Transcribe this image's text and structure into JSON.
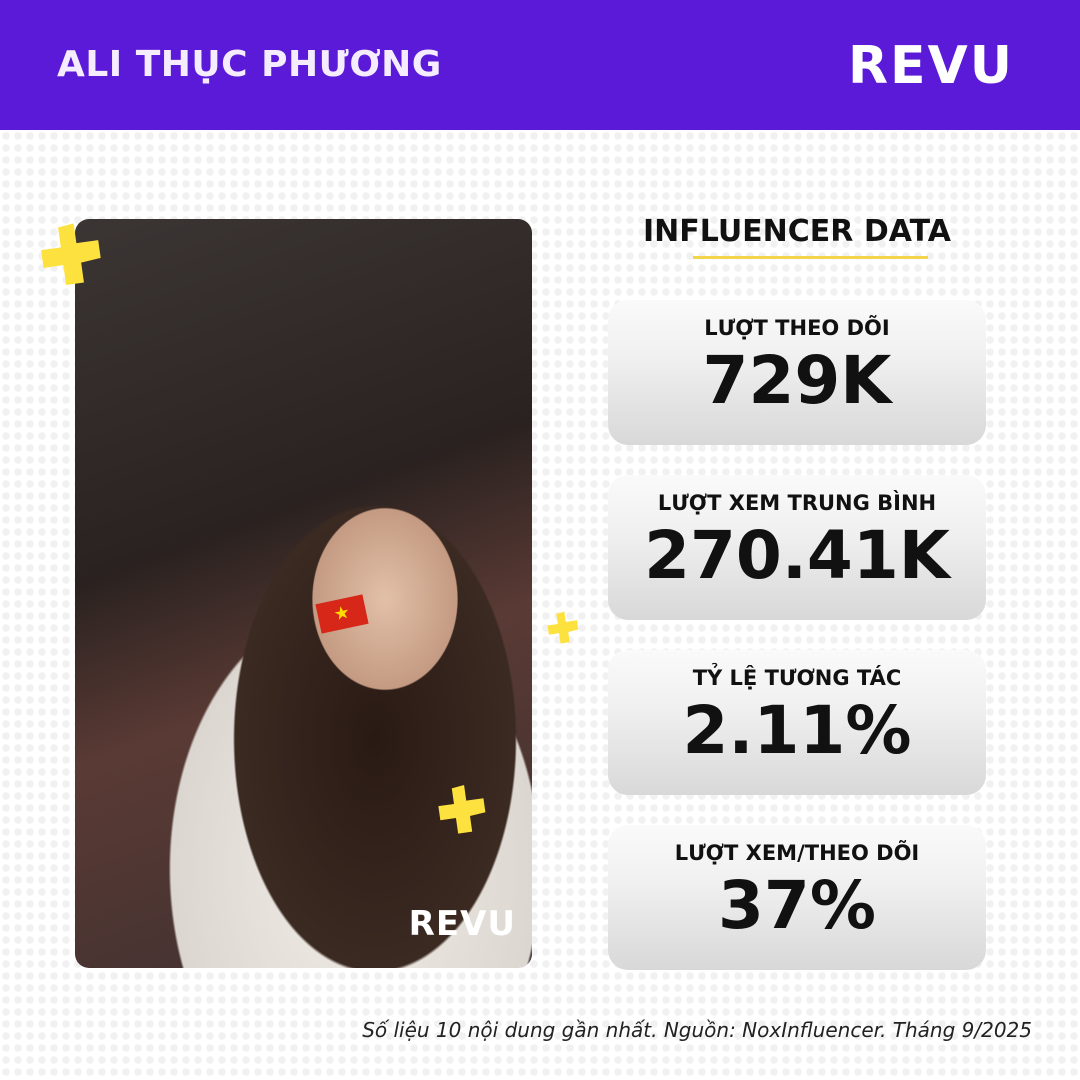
{
  "header": {
    "name": "ALI THỤC PHƯƠNG",
    "brand": "REVU"
  },
  "photo": {
    "watermark": "REVU",
    "flag": "★"
  },
  "section_title": "INFLUENCER DATA",
  "stats": [
    {
      "label": "LƯỢT THEO DÕI",
      "value": "729K"
    },
    {
      "label": "LƯỢT XEM TRUNG BÌNH",
      "value": "270.41K"
    },
    {
      "label": "TỶ LỆ TƯƠNG TÁC",
      "value": "2.11%"
    },
    {
      "label": "LƯỢT XEM/THEO DÕI",
      "value": "37%"
    }
  ],
  "footnote": "Số liệu 10 nội dung gần nhất. Nguồn: NoxInfluencer. Tháng 9/2025",
  "colors": {
    "header": "#5a1ad8",
    "accent": "#fde23f"
  }
}
